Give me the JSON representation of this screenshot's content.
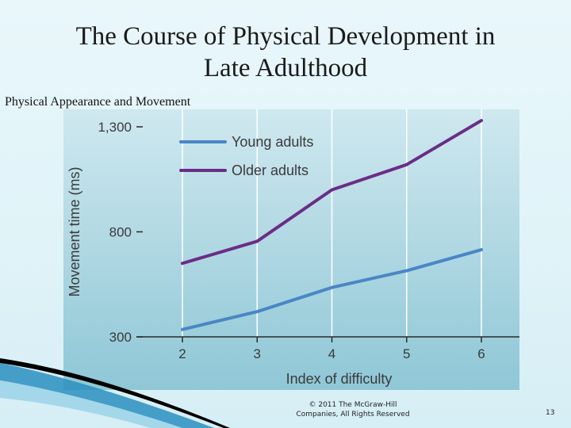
{
  "slide": {
    "title_line1": "The Course of Physical Development in",
    "title_line2": "Late Adulthood",
    "subtitle": "Physical Appearance and Movement",
    "copyright_line1": "© 2011 The McGraw-Hill",
    "copyright_line2": "Companies, All Rights Reserved",
    "page_number": "13"
  },
  "colors": {
    "plot_bg_top": "#cfe8ef",
    "plot_bg_bottom": "#8fc7d6",
    "young": "#4a86c5",
    "older": "#6b2d86",
    "accent_swoosh": "#2a8fbf"
  },
  "chart_data": {
    "type": "line",
    "title": "",
    "xlabel": "Index of difficulty",
    "ylabel": "Movement time (ms)",
    "x": [
      2,
      3,
      4,
      5,
      6
    ],
    "x_tick_labels": [
      "2",
      "3",
      "4",
      "5",
      "6"
    ],
    "y_ticks": [
      300,
      800,
      1300
    ],
    "y_tick_labels": [
      "300",
      "800",
      "1,300"
    ],
    "ylim": [
      300,
      1300
    ],
    "grid": "vertical",
    "legend_position": "top-left",
    "series": [
      {
        "name": "Young adults",
        "color": "#4a86c5",
        "values": [
          335,
          420,
          535,
          615,
          715
        ]
      },
      {
        "name": "Older adults",
        "color": "#6b2d86",
        "values": [
          650,
          755,
          1000,
          1120,
          1330
        ]
      }
    ]
  }
}
